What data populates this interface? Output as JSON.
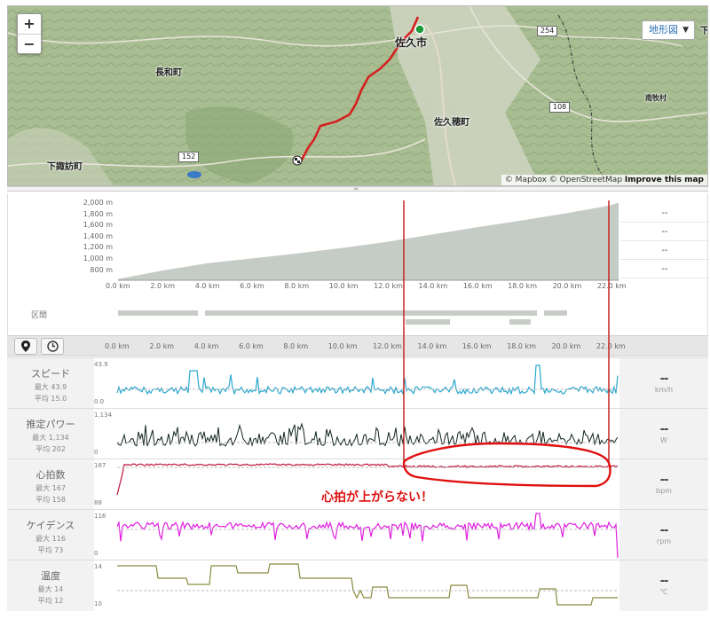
{
  "map": {
    "zoom_in": "+",
    "zoom_out": "−",
    "map_type": "地形図",
    "places": [
      {
        "key": "saku",
        "label": "佐久市"
      },
      {
        "key": "nagawa",
        "label": "長和町"
      },
      {
        "key": "sakuho",
        "label": "佐久穂町"
      },
      {
        "key": "shimosuwa",
        "label": "下諏訪町"
      },
      {
        "key": "minamimaki",
        "label": "南牧村"
      },
      {
        "key": "shimonita",
        "label": "下仁"
      }
    ],
    "roads": [
      "254",
      "152",
      "108"
    ],
    "attribution": {
      "text": "© Mapbox © OpenStreetMap",
      "link": "Improve this map"
    }
  },
  "profile": {
    "elev_ticks": [
      "2,000 m",
      "1,800 m",
      "1,600 m",
      "1,400 m",
      "1,200 m",
      "1,000 m",
      "800 m"
    ],
    "km_ticks": [
      "0.0 km",
      "2.0 km",
      "4.0 km",
      "6.0 km",
      "8.0 km",
      "10.0 km",
      "12.0 km",
      "14.0 km",
      "16.0 km",
      "18.0 km",
      "20.0 km",
      "22.0 km"
    ],
    "side_values": [
      "--",
      "--",
      "--",
      "--"
    ],
    "section_label": "区間",
    "elevation": {
      "km": [
        0,
        2,
        4,
        6,
        8,
        10,
        12,
        14,
        16,
        18,
        20,
        22,
        22.4
      ],
      "m": [
        720,
        860,
        980,
        1060,
        1140,
        1230,
        1330,
        1450,
        1570,
        1680,
        1800,
        1930,
        1980
      ]
    }
  },
  "rows": [
    {
      "key": "speed",
      "name": "スピード",
      "max": "最大 43.9",
      "avg": "平均 15.0",
      "ytop": "43.9",
      "ybot": "0.0",
      "unit": "km/h",
      "value": "--",
      "color": "#2aa8cf"
    },
    {
      "key": "power",
      "name": "推定パワー",
      "max": "最大 1,134",
      "avg": "平均 202",
      "ytop": "1,134",
      "ybot": "0",
      "unit": "W",
      "value": "--",
      "color": "#10241d"
    },
    {
      "key": "hr",
      "name": "心拍数",
      "max": "最大 167",
      "avg": "平均 158",
      "ytop": "167",
      "ybot": "88",
      "unit": "bpm",
      "value": "--",
      "color": "#c0143c"
    },
    {
      "key": "cadence",
      "name": "ケイデンス",
      "max": "最大 116",
      "avg": "平均 73",
      "ytop": "116",
      "ybot": "0",
      "unit": "rpm",
      "value": "--",
      "color": "#e01ee0"
    },
    {
      "key": "temp",
      "name": "温度",
      "max": "最大 14",
      "avg": "平均 12",
      "ytop": "14",
      "ybot": "10",
      "unit": "℃",
      "value": "--",
      "color": "#8a8a40"
    }
  ],
  "annotation": {
    "text": "心拍が上がらない！",
    "color": "#d11111"
  }
}
